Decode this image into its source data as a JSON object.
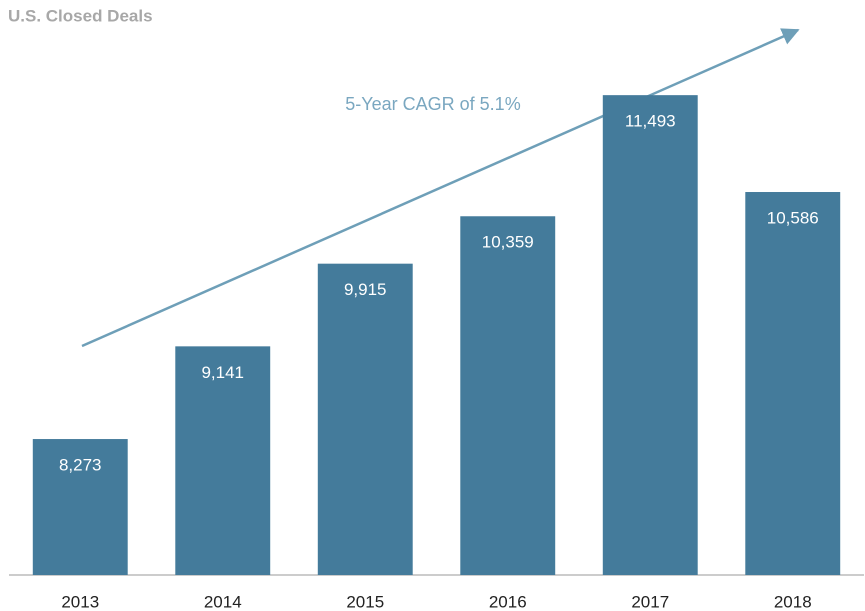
{
  "chart_data": {
    "type": "bar",
    "title": "U.S. Closed Deals",
    "annotation": "5-Year CAGR of 5.1%",
    "categories": [
      "2013",
      "2014",
      "2015",
      "2016",
      "2017",
      "2018"
    ],
    "values": [
      8273,
      9141,
      9915,
      10359,
      11493,
      10586
    ],
    "value_labels": [
      "8,273",
      "9,141",
      "9,915",
      "10,359",
      "11,493",
      "10,586"
    ],
    "color": "#447b9b",
    "ylim": [
      7000,
      12000
    ]
  }
}
